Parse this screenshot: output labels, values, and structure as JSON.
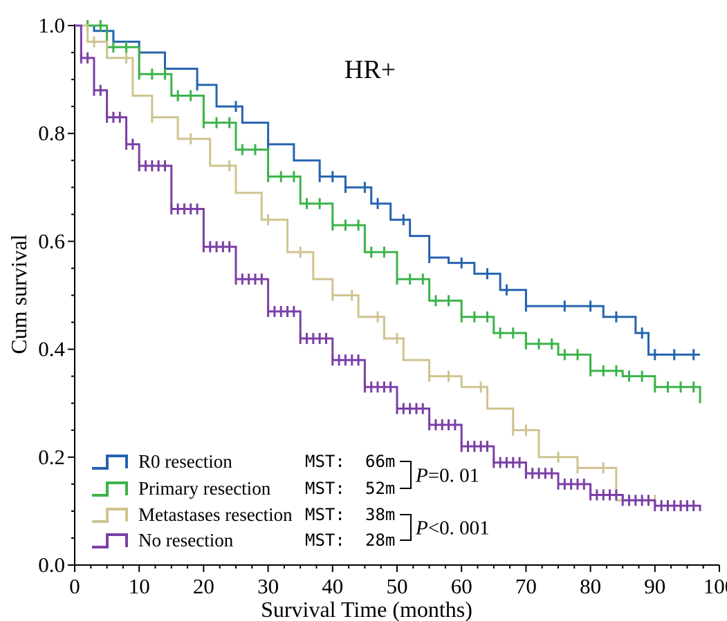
{
  "chart_data": {
    "type": "line",
    "step": true,
    "title": "HR+",
    "xlabel": "Survival Time (months)",
    "ylabel": "Cum survival",
    "xlim": [
      0,
      100
    ],
    "ylim": [
      0,
      1.0
    ],
    "x_ticks": [
      0,
      10,
      20,
      30,
      40,
      50,
      60,
      70,
      80,
      90,
      100
    ],
    "y_ticks": [
      "0.0",
      "0.2",
      "0.4",
      "0.6",
      "0.8",
      "1.0"
    ],
    "grid": false,
    "legend_position": "bottom-left",
    "series": [
      {
        "name": "R0 resection",
        "color": "#2563b0",
        "mst_label": "MST:",
        "mst_value": "66m",
        "points": [
          [
            0,
            1.0
          ],
          [
            3,
            0.99
          ],
          [
            6,
            0.97
          ],
          [
            10,
            0.95
          ],
          [
            14,
            0.92
          ],
          [
            19,
            0.89
          ],
          [
            22,
            0.85
          ],
          [
            26,
            0.82
          ],
          [
            30,
            0.78
          ],
          [
            34,
            0.75
          ],
          [
            38,
            0.72
          ],
          [
            42,
            0.7
          ],
          [
            46,
            0.67
          ],
          [
            49,
            0.64
          ],
          [
            52,
            0.61
          ],
          [
            55,
            0.57
          ],
          [
            58,
            0.56
          ],
          [
            62,
            0.54
          ],
          [
            66,
            0.51
          ],
          [
            70,
            0.48
          ],
          [
            75,
            0.48
          ],
          [
            82,
            0.46
          ],
          [
            87,
            0.43
          ],
          [
            89,
            0.39
          ],
          [
            97,
            0.39
          ]
        ],
        "censors": [
          6,
          10,
          19,
          25,
          30,
          38,
          40,
          42,
          45,
          47,
          51,
          55,
          60,
          64,
          67,
          70,
          76,
          80,
          84,
          88,
          90,
          93,
          96
        ]
      },
      {
        "name": "Primary resection",
        "color": "#3bb34a",
        "mst_label": "MST:",
        "mst_value": "52m",
        "points": [
          [
            0,
            1.0
          ],
          [
            5,
            0.96
          ],
          [
            10,
            0.91
          ],
          [
            15,
            0.87
          ],
          [
            20,
            0.82
          ],
          [
            25,
            0.77
          ],
          [
            30,
            0.72
          ],
          [
            35,
            0.67
          ],
          [
            40,
            0.63
          ],
          [
            45,
            0.58
          ],
          [
            50,
            0.53
          ],
          [
            55,
            0.49
          ],
          [
            60,
            0.46
          ],
          [
            65,
            0.43
          ],
          [
            70,
            0.41
          ],
          [
            75,
            0.39
          ],
          [
            80,
            0.36
          ],
          [
            85,
            0.35
          ],
          [
            90,
            0.33
          ],
          [
            97,
            0.3
          ]
        ],
        "censors": [
          2,
          4,
          6,
          8,
          10,
          12,
          14,
          16,
          18,
          20,
          22,
          24,
          26,
          28,
          30,
          32,
          34,
          36,
          38,
          40,
          42,
          44,
          46,
          48,
          50,
          52,
          54,
          56,
          58,
          60,
          62,
          64,
          66,
          68,
          70,
          72,
          74,
          76,
          78,
          80,
          82,
          84,
          86,
          88,
          90,
          92,
          94,
          96
        ]
      },
      {
        "name": "Metastases resection",
        "color": "#cfc38f",
        "mst_label": "MST:",
        "mst_value": "38m",
        "points": [
          [
            0,
            1.0
          ],
          [
            2,
            0.97
          ],
          [
            5,
            0.94
          ],
          [
            9,
            0.87
          ],
          [
            12,
            0.83
          ],
          [
            16,
            0.79
          ],
          [
            21,
            0.74
          ],
          [
            25,
            0.69
          ],
          [
            29,
            0.64
          ],
          [
            33,
            0.58
          ],
          [
            37,
            0.53
          ],
          [
            40,
            0.5
          ],
          [
            44,
            0.46
          ],
          [
            48,
            0.42
          ],
          [
            51,
            0.38
          ],
          [
            55,
            0.35
          ],
          [
            60,
            0.33
          ],
          [
            64,
            0.29
          ],
          [
            68,
            0.25
          ],
          [
            72,
            0.2
          ],
          [
            78,
            0.18
          ],
          [
            84,
            0.12
          ],
          [
            90,
            0.12
          ]
        ],
        "censors": [
          3,
          8,
          12,
          18,
          24,
          30,
          35,
          40,
          43,
          47,
          50,
          55,
          58,
          63,
          68,
          70,
          75,
          78,
          82,
          86,
          90
        ]
      },
      {
        "name": "No resection",
        "color": "#7b3fa6",
        "mst_label": "MST:",
        "mst_value": "28m",
        "points": [
          [
            0,
            1.0
          ],
          [
            1,
            0.94
          ],
          [
            3,
            0.88
          ],
          [
            5,
            0.83
          ],
          [
            8,
            0.78
          ],
          [
            10,
            0.74
          ],
          [
            15,
            0.66
          ],
          [
            20,
            0.59
          ],
          [
            25,
            0.53
          ],
          [
            30,
            0.47
          ],
          [
            35,
            0.42
          ],
          [
            40,
            0.38
          ],
          [
            45,
            0.33
          ],
          [
            50,
            0.29
          ],
          [
            55,
            0.26
          ],
          [
            60,
            0.22
          ],
          [
            65,
            0.19
          ],
          [
            70,
            0.17
          ],
          [
            75,
            0.15
          ],
          [
            80,
            0.13
          ],
          [
            85,
            0.12
          ],
          [
            90,
            0.11
          ],
          [
            97,
            0.1
          ]
        ],
        "censors": [
          1,
          2,
          3,
          4,
          5,
          6,
          7,
          8,
          9,
          10,
          11,
          12,
          13,
          14,
          15,
          16,
          17,
          18,
          19,
          20,
          21,
          22,
          23,
          24,
          25,
          26,
          27,
          28,
          29,
          30,
          31,
          32,
          33,
          34,
          35,
          36,
          37,
          38,
          39,
          40,
          41,
          42,
          43,
          44,
          45,
          46,
          47,
          48,
          49,
          50,
          51,
          52,
          53,
          54,
          55,
          56,
          57,
          58,
          59,
          60,
          61,
          62,
          63,
          64,
          65,
          66,
          67,
          68,
          69,
          70,
          71,
          72,
          73,
          74,
          75,
          76,
          77,
          78,
          79,
          80,
          81,
          82,
          83,
          84,
          85,
          86,
          87,
          88,
          89,
          90,
          91,
          92,
          93,
          94,
          95,
          96
        ]
      }
    ],
    "annotations": [
      {
        "label": "P",
        "value": "=0. 01",
        "pair": [
          0,
          1
        ]
      },
      {
        "label": "P",
        "value": "˂0. 001",
        "pair": [
          2,
          3
        ]
      }
    ]
  }
}
